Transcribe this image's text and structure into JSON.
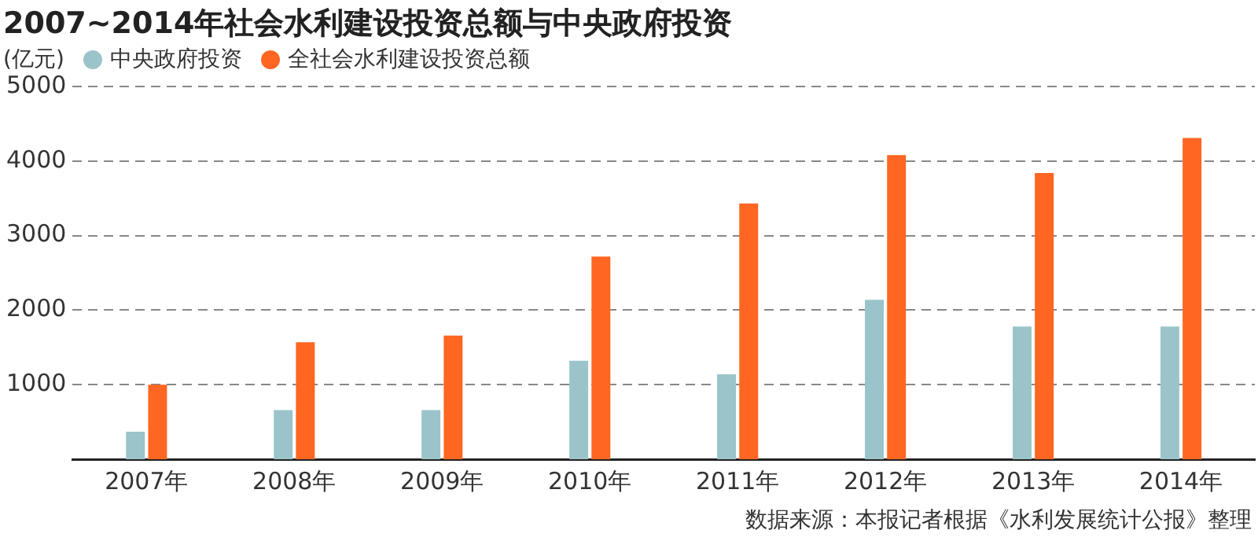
{
  "chart_data": {
    "type": "bar",
    "title": "2007~2014年社会水利建设投资总额与中央政府投资",
    "ylabel": "(亿元)",
    "categories": [
      "2007年",
      "2008年",
      "2009年",
      "2010年",
      "2011年",
      "2012年",
      "2013年",
      "2014年"
    ],
    "series": [
      {
        "name": "中央政府投资",
        "color": "#9bc4ca",
        "values": [
          370,
          660,
          660,
          1320,
          1140,
          2140,
          1780,
          1780
        ]
      },
      {
        "name": "全社会水利建设投资总额",
        "color": "#ff6622",
        "values": [
          1000,
          1570,
          1660,
          2720,
          3430,
          4080,
          3840,
          4310
        ]
      }
    ],
    "ylim": [
      0,
      5000
    ],
    "yticks": [
      1000,
      2000,
      3000,
      4000,
      5000
    ],
    "grid": "y",
    "legend": "top left",
    "annotations": [
      "数据来源：本报记者根据《水利发展统计公报》整理"
    ]
  }
}
